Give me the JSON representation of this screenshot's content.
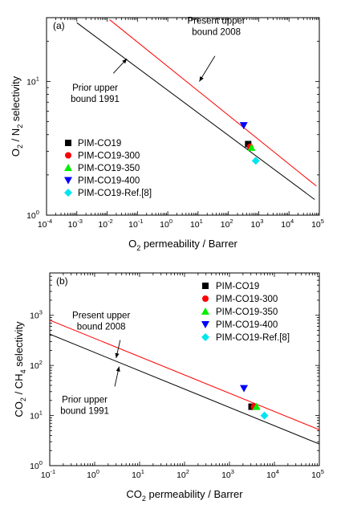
{
  "chart_data": [
    {
      "type": "scatter",
      "panel_label": "(a)",
      "xlabel": {
        "pre": "O",
        "sub": "2",
        "post": " permeability / Barrer"
      },
      "ylabel": {
        "pre": "O",
        "sub1": "2",
        "mid": " / N",
        "sub2": "2",
        "post": " selectivity"
      },
      "xscale": "log",
      "yscale": "log",
      "xlim": [
        0.0001,
        100000
      ],
      "ylim": [
        1,
        30
      ],
      "xticks": [
        {
          "value": 0.0001,
          "base": "10",
          "exp": "-4"
        },
        {
          "value": 0.001,
          "base": "10",
          "exp": "-3"
        },
        {
          "value": 0.01,
          "base": "10",
          "exp": "-2"
        },
        {
          "value": 0.1,
          "base": "10",
          "exp": "-1"
        },
        {
          "value": 1,
          "base": "10",
          "exp": "0"
        },
        {
          "value": 10,
          "base": "10",
          "exp": "1"
        },
        {
          "value": 100,
          "base": "10",
          "exp": "2"
        },
        {
          "value": 1000,
          "base": "10",
          "exp": "3"
        },
        {
          "value": 10000,
          "base": "10",
          "exp": "4"
        },
        {
          "value": 100000,
          "base": "10",
          "exp": "5"
        }
      ],
      "yticks": [
        {
          "value": 1,
          "base": "10",
          "exp": "0"
        },
        {
          "value": 10,
          "base": "10",
          "exp": "1"
        }
      ],
      "bound_lines": [
        {
          "name": "Prior upper bound 1991",
          "color": "#000000",
          "x": [
            0.001,
            70000
          ],
          "y": [
            27.5,
            1.31
          ]
        },
        {
          "name": "Present upper bound 2008",
          "color": "#ff0000",
          "x": [
            0.012,
            80000
          ],
          "y": [
            29.0,
            1.65
          ]
        }
      ],
      "annotations": [
        {
          "lines": [
            "Prior upper",
            "bound 1991"
          ],
          "text_at": [
            0.004,
            8.5
          ],
          "arrow_from": [
            0.016,
            11.5
          ],
          "arrow_to": [
            0.045,
            14.8
          ]
        },
        {
          "lines": [
            "Present upper",
            "bound 2008"
          ],
          "text_at": [
            40,
            27
          ],
          "arrow_from": [
            36,
            15.5
          ],
          "arrow_to": [
            11,
            10.0
          ]
        }
      ],
      "series": [
        {
          "name": "PIM-CO19",
          "marker": "square",
          "color": "#000000",
          "x": 450,
          "y": 3.4
        },
        {
          "name": "PIM-CO19-300",
          "marker": "circle",
          "color": "#ff0000",
          "x": 520,
          "y": 3.25
        },
        {
          "name": "PIM-CO19-350",
          "marker": "triangle-up",
          "color": "#00ee00",
          "x": 580,
          "y": 3.2
        },
        {
          "name": "PIM-CO19-400",
          "marker": "triangle-down",
          "color": "#0000ff",
          "x": 320,
          "y": 4.7
        },
        {
          "name": "PIM-CO19-Ref.[8]",
          "marker": "diamond",
          "color": "#00e5ee",
          "x": 800,
          "y": 2.55
        }
      ],
      "legend_position": "left"
    },
    {
      "type": "scatter",
      "panel_label": "(b)",
      "xlabel": {
        "pre": "CO",
        "sub": "2",
        "post": " permeability / Barrer"
      },
      "ylabel": {
        "pre": "CO",
        "sub1": "2",
        "mid": " / CH",
        "sub2": "4",
        "post": " selectivity"
      },
      "xscale": "log",
      "yscale": "log",
      "xlim": [
        0.1,
        100000
      ],
      "ylim": [
        1,
        7000
      ],
      "xticks": [
        {
          "value": 0.1,
          "base": "10",
          "exp": "-1"
        },
        {
          "value": 1,
          "base": "10",
          "exp": "0"
        },
        {
          "value": 10,
          "base": "10",
          "exp": "1"
        },
        {
          "value": 100,
          "base": "10",
          "exp": "2"
        },
        {
          "value": 1000,
          "base": "10",
          "exp": "3"
        },
        {
          "value": 10000,
          "base": "10",
          "exp": "4"
        },
        {
          "value": 100000,
          "base": "10",
          "exp": "5"
        }
      ],
      "yticks": [
        {
          "value": 1,
          "base": "10",
          "exp": "0"
        },
        {
          "value": 10,
          "base": "10",
          "exp": "1"
        },
        {
          "value": 100,
          "base": "10",
          "exp": "2"
        },
        {
          "value": 1000,
          "base": "10",
          "exp": "3"
        }
      ],
      "bound_lines": [
        {
          "name": "Prior upper bound 1991",
          "color": "#000000",
          "x": [
            0.1,
            100000
          ],
          "y": [
            420,
            2.7
          ]
        },
        {
          "name": "Present upper bound 2008",
          "color": "#ff0000",
          "x": [
            0.1,
            100000
          ],
          "y": [
            800,
            5.2
          ]
        }
      ],
      "annotations": [
        {
          "lines": [
            "Present upper",
            "bound 2008"
          ],
          "text_at": [
            1.4,
            870
          ],
          "arrow_from": [
            3.7,
            320
          ],
          "arrow_to": [
            3.0,
            140
          ]
        },
        {
          "lines": [
            "Prior upper",
            "bound 1991"
          ],
          "text_at": [
            0.6,
            18
          ],
          "arrow_from": [
            2.8,
            38
          ],
          "arrow_to": [
            3.5,
            95
          ]
        }
      ],
      "series": [
        {
          "name": "PIM-CO19",
          "marker": "square",
          "color": "#000000",
          "x": 3100,
          "y": 15
        },
        {
          "name": "PIM-CO19-300",
          "marker": "circle",
          "color": "#ff0000",
          "x": 3500,
          "y": 15
        },
        {
          "name": "PIM-CO19-350",
          "marker": "triangle-up",
          "color": "#00ee00",
          "x": 4000,
          "y": 15
        },
        {
          "name": "PIM-CO19-400",
          "marker": "triangle-down",
          "color": "#0000ff",
          "x": 2100,
          "y": 35
        },
        {
          "name": "PIM-CO19-Ref.[8]",
          "marker": "diamond",
          "color": "#00e5ee",
          "x": 6000,
          "y": 10
        }
      ],
      "legend_position": "top-right"
    }
  ]
}
